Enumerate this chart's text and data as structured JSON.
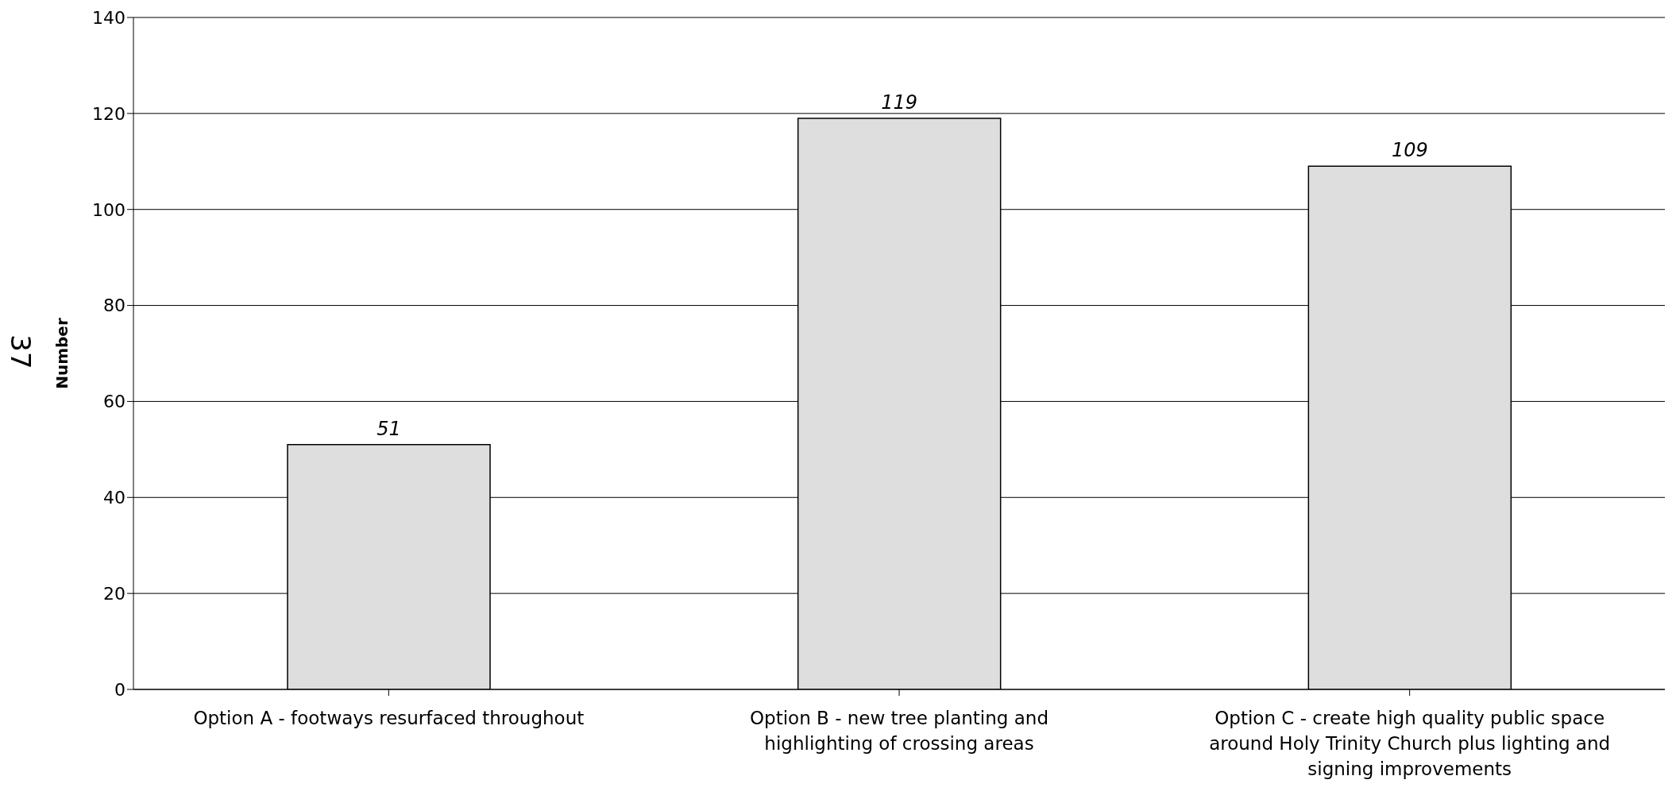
{
  "chart_data": {
    "type": "bar",
    "ylabel": "Number",
    "categories": [
      "Option A - footways resurfaced throughout",
      "Option B - new tree planting and highlighting of crossing areas",
      "Option C - create high quality public space around Holy Trinity Church plus lighting and signing improvements"
    ],
    "values": [
      51,
      119,
      109
    ],
    "color": "#dedede",
    "ylim": [
      0,
      140
    ],
    "yticks": [
      0,
      20,
      40,
      60,
      80,
      100,
      120,
      140
    ],
    "grid": "y",
    "data_labels": true,
    "annotations": [
      "37"
    ]
  }
}
